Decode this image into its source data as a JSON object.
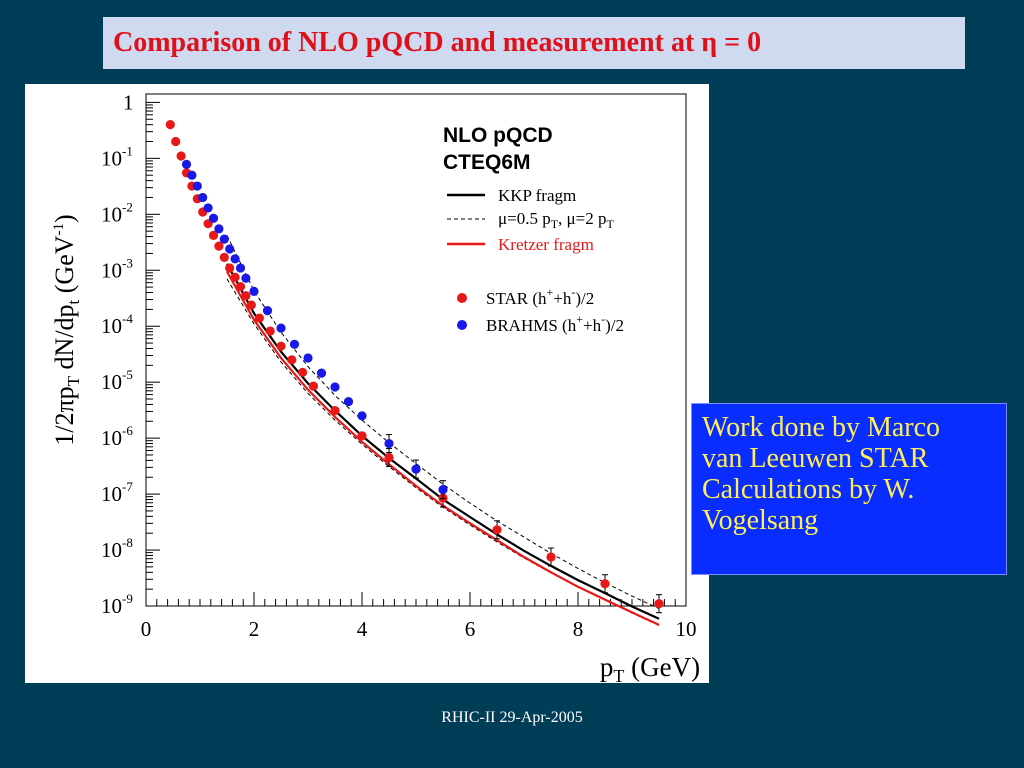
{
  "slide": {
    "title": "Comparison of NLO pQCD and measurement at η = 0",
    "footer": "RHIC-II 29-Apr-2005",
    "note_lines": [
      "Work done by Marco",
      "van Leeuwen STAR",
      "Calculations by W.",
      "Vogelsang"
    ]
  },
  "colors": {
    "background": "#003d57",
    "title_box": "#cfd9ef",
    "title_text": "#e0101a",
    "note_box": "#0a2dff",
    "note_text": "#ffee55",
    "star": "#e81818",
    "brahms": "#1818e8",
    "kkp": "#000000",
    "kretzer": "#e81818"
  },
  "chart_data": {
    "type": "scatter",
    "xlabel": "p_T (GeV)",
    "ylabel": "1/2πp_T dN/dp_t (GeV^-1)",
    "xlim": [
      0,
      10
    ],
    "ylim_log10": [
      -9,
      0.15
    ],
    "yscale": "log",
    "x_ticks": [
      "0",
      "2",
      "4",
      "6",
      "8",
      "10"
    ],
    "y_ticks": [
      {
        "base": "1",
        "exp": ""
      },
      {
        "base": "10",
        "exp": "-1"
      },
      {
        "base": "10",
        "exp": "-2"
      },
      {
        "base": "10",
        "exp": "-3"
      },
      {
        "base": "10",
        "exp": "-4"
      },
      {
        "base": "10",
        "exp": "-5"
      },
      {
        "base": "10",
        "exp": "-6"
      },
      {
        "base": "10",
        "exp": "-7"
      },
      {
        "base": "10",
        "exp": "-8"
      },
      {
        "base": "10",
        "exp": "-9"
      }
    ],
    "legend": {
      "placement": "top-right",
      "heading1": "NLO pQCD",
      "heading2": "CTEQ6M",
      "kkp": "KKP fragm",
      "scale_pre": "μ=0.5 p",
      "scale_sub1": "T",
      "scale_mid": ", μ=2 p",
      "scale_sub2": "T",
      "kretzer": "Kretzer fragm",
      "star_pre": "STAR (h",
      "star_mid": "+h",
      "star_post": ")/2",
      "brahms_pre": "BRAHMS (h",
      "brahms_mid": "+h",
      "brahms_post": ")/2",
      "sup_plus": "+",
      "sup_minus": "-"
    },
    "series": [
      {
        "name": "STAR (h⁺+h⁻)/2",
        "kind": "points",
        "x": [
          0.45,
          0.55,
          0.65,
          0.75,
          0.85,
          0.95,
          1.05,
          1.15,
          1.25,
          1.35,
          1.45,
          1.55,
          1.65,
          1.75,
          1.85,
          1.95,
          2.1,
          2.3,
          2.5,
          2.7,
          2.9,
          3.1,
          3.5,
          4.0,
          4.5,
          5.5,
          6.5,
          7.5,
          8.5,
          9.5
        ],
        "y": [
          0.4,
          0.2,
          0.11,
          0.055,
          0.032,
          0.019,
          0.011,
          0.0068,
          0.0042,
          0.0027,
          0.0017,
          0.0011,
          0.00075,
          0.00051,
          0.00035,
          0.00024,
          0.00014,
          8.2e-05,
          4.4e-05,
          2.5e-05,
          1.5e-05,
          8.5e-06,
          3.1e-06,
          1.1e-06,
          4.5e-07,
          8.5e-08,
          2.3e-08,
          7.5e-09,
          2.5e-09,
          1.1e-09
        ]
      },
      {
        "name": "BRAHMS (h⁺+h⁻)/2",
        "kind": "points",
        "x": [
          0.75,
          0.85,
          0.95,
          1.05,
          1.15,
          1.25,
          1.35,
          1.45,
          1.55,
          1.65,
          1.75,
          1.85,
          2.0,
          2.25,
          2.5,
          2.75,
          3.0,
          3.25,
          3.5,
          3.75,
          4.0,
          4.5,
          5.0,
          5.5
        ],
        "y": [
          0.078,
          0.05,
          0.032,
          0.02,
          0.013,
          0.0085,
          0.0055,
          0.0036,
          0.0024,
          0.0016,
          0.0011,
          0.00072,
          0.00042,
          0.00019,
          9.25e-05,
          4.75e-05,
          2.7e-05,
          1.45e-05,
          8.2e-06,
          4.5e-06,
          2.5e-06,
          8e-07,
          2.8e-07,
          1.2e-07
        ]
      },
      {
        "name": "KKP fragm",
        "kind": "line",
        "style": "solid",
        "x": [
          1.5,
          2,
          2.5,
          3,
          3.5,
          4,
          4.5,
          5,
          5.5,
          6,
          6.5,
          7,
          7.5,
          8,
          8.5,
          9,
          9.5
        ],
        "y": [
          0.0013,
          0.00017,
          3.5e-05,
          9.5e-06,
          3.1e-06,
          1.1e-06,
          4.4e-07,
          1.9e-07,
          8e-08,
          3.9e-08,
          1.9e-08,
          9.7e-09,
          5.2e-09,
          2.9e-09,
          1.7e-09,
          9.8e-10,
          5.9e-10
        ]
      },
      {
        "name": "μ=0.5 p_T, μ=2 p_T (upper)",
        "kind": "line",
        "style": "dashed",
        "x": [
          1.5,
          2,
          2.5,
          3,
          3.5,
          4,
          4.5,
          5,
          5.5,
          6,
          6.5,
          7,
          7.5,
          8,
          8.5,
          9,
          9.5
        ],
        "y": [
          0.0042,
          0.00043,
          7.8e-05,
          1.9e-05,
          5.8e-06,
          2.1e-06,
          8.3e-07,
          3.5e-07,
          1.5e-07,
          6.9e-08,
          3.3e-08,
          1.7e-08,
          8.7e-09,
          4.7e-09,
          2.6e-09,
          1.5e-09,
          9e-10
        ]
      },
      {
        "name": "μ=0.5 p_T, μ=2 p_T (lower)",
        "kind": "line",
        "style": "dashed",
        "x": [
          1.5,
          2,
          2.5,
          3,
          3.5,
          4,
          4.5,
          5,
          5.5,
          6,
          6.5,
          7,
          7.5,
          8,
          8.5,
          9,
          9.5
        ],
        "y": [
          0.0007,
          0.00011,
          2.3e-05,
          6.3e-06,
          2.1e-06,
          7.8e-07,
          3.1e-07,
          1.3e-07,
          5.8e-08,
          2.8e-08,
          1.4e-08,
          7.2e-09,
          3.9e-09,
          2.2e-09,
          1.3e-09,
          7.5e-10,
          4.5e-10
        ]
      },
      {
        "name": "Kretzer fragm",
        "kind": "line",
        "style": "solid",
        "x": [
          1.5,
          2,
          2.5,
          3,
          3.5,
          4,
          4.5,
          5,
          5.5,
          6,
          6.5,
          7,
          7.5,
          8,
          8.5,
          9,
          9.5
        ],
        "y": [
          0.00095,
          0.00013,
          2.7e-05,
          7.3e-06,
          2.4e-06,
          8.6e-07,
          3.4e-07,
          1.4e-07,
          6.2e-08,
          3e-08,
          1.5e-08,
          7.5e-09,
          4e-09,
          2.2e-09,
          1.3e-09,
          7.7e-10,
          4.6e-10
        ]
      }
    ]
  }
}
